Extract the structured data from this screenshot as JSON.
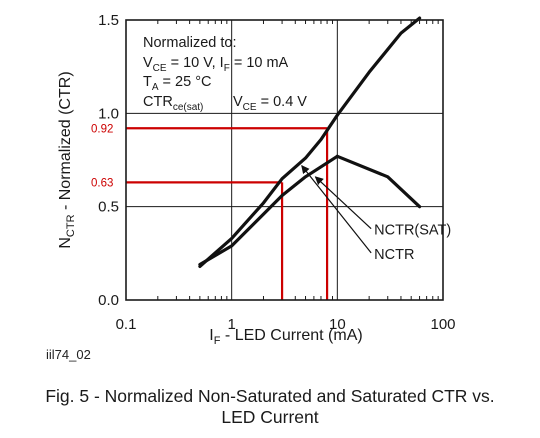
{
  "chart_data": {
    "type": "line",
    "xscale": "log",
    "xlim": [
      0.1,
      100
    ],
    "ylim": [
      0.0,
      1.5
    ],
    "x_ticks": [
      0.1,
      1,
      10,
      100
    ],
    "x_tick_labels": [
      "0.1",
      "1",
      "10",
      "100"
    ],
    "y_ticks": [
      0.0,
      0.5,
      1.0,
      1.5
    ],
    "y_tick_labels": [
      "0.0",
      "0.5",
      "1.0",
      "1.5"
    ],
    "ylabel_main": "N",
    "ylabel_sub": "CTR",
    "ylabel_rest": " - Normalized (CTR)",
    "xlabel_main": "I",
    "xlabel_sub": "F",
    "xlabel_rest": " - LED Current (mA)",
    "grid": true,
    "series": [
      {
        "name": "NCTR(SAT)",
        "x": [
          0.5,
          1,
          2,
          3,
          5,
          10
        ],
        "y": [
          0.19,
          0.29,
          0.46,
          0.56,
          0.66,
          0.77
        ]
      },
      {
        "name": "NCTR",
        "x": [
          0.5,
          1,
          2,
          3,
          5,
          7,
          10,
          20,
          40,
          60
        ],
        "y": [
          0.18,
          0.33,
          0.52,
          0.65,
          0.76,
          0.86,
          0.99,
          1.22,
          1.43,
          1.51
        ]
      },
      {
        "name": "",
        "x": [
          10,
          30,
          60
        ],
        "y": [
          0.77,
          0.66,
          0.5
        ]
      }
    ],
    "markers": [
      {
        "label": "0.92",
        "y": 0.92,
        "x": 8.0
      },
      {
        "label": "0.63",
        "y": 0.63,
        "x": 3.0
      }
    ],
    "marker_color": "#cc0000",
    "curve_labels": [
      {
        "text": "NCTR(SAT)",
        "x": 20.0,
        "y": 0.35,
        "arrow_to_x": 6.2,
        "arrow_to_y": 0.66
      },
      {
        "text": "NCTR",
        "x": 20.0,
        "y": 0.22,
        "arrow_to_x": 4.6,
        "arrow_to_y": 0.72
      }
    ],
    "annotations": {
      "line1": "Normalized to:",
      "line2_a": "V",
      "line2_a_sub": "CE",
      "line2_b": " = 10 V, I",
      "line2_b_sub": "F",
      "line2_c": " = 10 mA",
      "line3_a": "T",
      "line3_a_sub": "A",
      "line3_b": " = 25 °C",
      "line4_a": "CTR",
      "line4_a_sub": "ce(sat)",
      "line4_b": "V",
      "line4_b_sub": "CE",
      "line4_c": " = 0.4 V"
    }
  },
  "figure_id": "iil74_02",
  "caption_line1": "Fig. 5 - Normalized Non-Saturated and Saturated CTR vs.",
  "caption_line2": "LED Current"
}
